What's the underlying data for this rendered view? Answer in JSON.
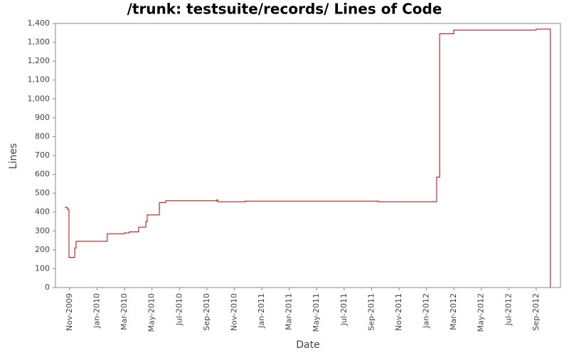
{
  "chart_data": {
    "type": "step",
    "title": "/trunk: testsuite/records/ Lines of Code",
    "xlabel": "Date",
    "ylabel": "Lines",
    "series": [
      {
        "name": "Lines",
        "color": "#c00000",
        "x": [
          2009.803,
          2009.82,
          2009.829,
          2009.864,
          2009.872,
          2010.062,
          2010.166,
          2010.196,
          2010.252,
          2010.296,
          2010.304,
          2010.378,
          2010.417,
          2010.727,
          2010.732,
          2010.9,
          2011.708,
          2012.062,
          2012.08,
          2012.166,
          2012.667,
          2012.753
        ],
        "values": [
          425,
          415,
          160,
          210,
          245,
          285,
          290,
          295,
          320,
          350,
          385,
          450,
          460,
          465,
          455,
          458,
          455,
          585,
          1345,
          1365,
          1370,
          0
        ]
      }
    ],
    "xlim": [
      2009.747,
      2012.814
    ],
    "xticks": [
      {
        "value": 2009.8333,
        "label": "Nov-2009"
      },
      {
        "value": 2010.0,
        "label": "Jan-2010"
      },
      {
        "value": 2010.1667,
        "label": "Mar-2010"
      },
      {
        "value": 2010.3333,
        "label": "May-2010"
      },
      {
        "value": 2010.5,
        "label": "Jul-2010"
      },
      {
        "value": 2010.6667,
        "label": "Sep-2010"
      },
      {
        "value": 2010.8333,
        "label": "Nov-2010"
      },
      {
        "value": 2011.0,
        "label": "Jan-2011"
      },
      {
        "value": 2011.1667,
        "label": "Mar-2011"
      },
      {
        "value": 2011.3333,
        "label": "May-2011"
      },
      {
        "value": 2011.5,
        "label": "Jul-2011"
      },
      {
        "value": 2011.6667,
        "label": "Sep-2011"
      },
      {
        "value": 2011.8333,
        "label": "Nov-2011"
      },
      {
        "value": 2012.0,
        "label": "Jan-2012"
      },
      {
        "value": 2012.1667,
        "label": "Mar-2012"
      },
      {
        "value": 2012.3333,
        "label": "May-2012"
      },
      {
        "value": 2012.5,
        "label": "Jul-2012"
      },
      {
        "value": 2012.6667,
        "label": "Sep-2012"
      }
    ],
    "ylim": [
      0,
      1400
    ],
    "yticks": [
      0,
      100,
      200,
      300,
      400,
      500,
      600,
      700,
      800,
      900,
      {
        "value": 1000,
        "label": "1,000"
      },
      {
        "value": 1100,
        "label": "1,100"
      },
      {
        "value": 1200,
        "label": "1,200"
      },
      {
        "value": 1300,
        "label": "1,300"
      },
      {
        "value": 1400,
        "label": "1,400"
      }
    ],
    "grid": false
  }
}
